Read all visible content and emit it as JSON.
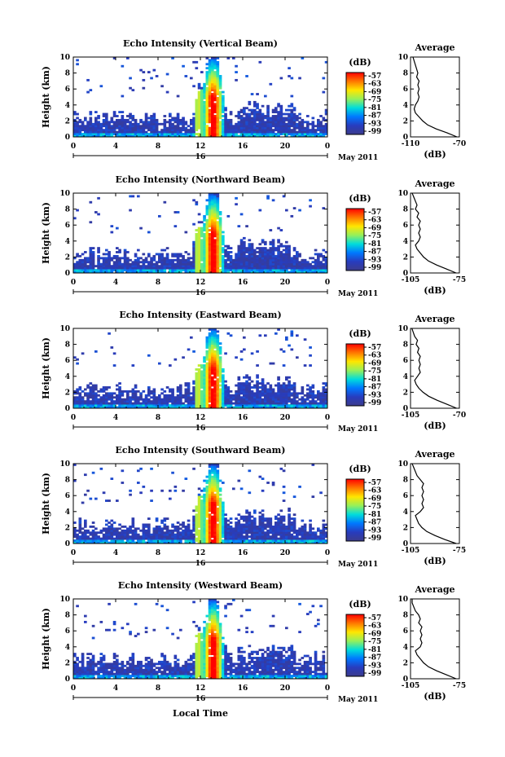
{
  "chart_data": {
    "type": "heatmap",
    "xlabel": "Local Time",
    "date_label": "May 2011",
    "day_marker": "16",
    "x_ticks": [
      "0",
      "4",
      "8",
      "12",
      "16",
      "20",
      "0"
    ],
    "y_ticks": [
      "0",
      "2",
      "4",
      "6",
      "8",
      "10"
    ],
    "ylabel": "Height (km)",
    "ylim": [
      0,
      10
    ],
    "xlim_hours": [
      0,
      24
    ],
    "colorbar": {
      "unit": "(dB)",
      "ticks": [
        "-57",
        "-63",
        "-69",
        "-75",
        "-81",
        "-87",
        "-93",
        "-99"
      ]
    },
    "average_title": "Average",
    "average_xlabel": "(dB)",
    "panels": [
      {
        "title": "Echo Intensity (Vertical Beam)",
        "average_xlim": [
          -110,
          -70
        ],
        "average_xticks": [
          "-110",
          "-70"
        ],
        "average_profile": [
          [
            -72,
            0
          ],
          [
            -80,
            0.5
          ],
          [
            -89,
            1
          ],
          [
            -96,
            1.5
          ],
          [
            -100,
            2
          ],
          [
            -103,
            2.5
          ],
          [
            -106,
            3
          ],
          [
            -107,
            3.5
          ],
          [
            -106,
            4
          ],
          [
            -104,
            4.5
          ],
          [
            -103,
            5
          ],
          [
            -104,
            5.5
          ],
          [
            -103,
            6
          ],
          [
            -104,
            6.5
          ],
          [
            -103,
            7
          ],
          [
            -105,
            7.5
          ],
          [
            -104,
            8
          ],
          [
            -105,
            8.5
          ],
          [
            -106,
            9
          ],
          [
            -107,
            9.5
          ],
          [
            -108,
            10
          ]
        ]
      },
      {
        "title": "Echo Intensity (Northward Beam)",
        "average_xlim": [
          -105,
          -75
        ],
        "average_xticks": [
          "-105",
          "-75"
        ],
        "average_profile": [
          [
            -77,
            0
          ],
          [
            -83,
            0.5
          ],
          [
            -89,
            1
          ],
          [
            -94,
            1.5
          ],
          [
            -97,
            2
          ],
          [
            -99,
            2.5
          ],
          [
            -101,
            3
          ],
          [
            -102,
            3.5
          ],
          [
            -100,
            4
          ],
          [
            -99,
            4.5
          ],
          [
            -100,
            5
          ],
          [
            -99,
            5.5
          ],
          [
            -100,
            6
          ],
          [
            -99,
            6.5
          ],
          [
            -101,
            7
          ],
          [
            -100,
            7.5
          ],
          [
            -102,
            8
          ],
          [
            -101,
            8.5
          ],
          [
            -102,
            9
          ],
          [
            -103,
            9.5
          ],
          [
            -104,
            10
          ]
        ]
      },
      {
        "title": "Echo Intensity (Eastward Beam)",
        "average_xlim": [
          -105,
          -70
        ],
        "average_xticks": [
          "-105",
          "-70"
        ],
        "average_profile": [
          [
            -72,
            0
          ],
          [
            -79,
            0.5
          ],
          [
            -86,
            1
          ],
          [
            -92,
            1.5
          ],
          [
            -96,
            2
          ],
          [
            -99,
            2.5
          ],
          [
            -101,
            3
          ],
          [
            -102,
            3.5
          ],
          [
            -100,
            4
          ],
          [
            -98,
            4.5
          ],
          [
            -99,
            5
          ],
          [
            -98,
            5.5
          ],
          [
            -99,
            6
          ],
          [
            -98,
            6.5
          ],
          [
            -100,
            7
          ],
          [
            -99,
            7.5
          ],
          [
            -101,
            8
          ],
          [
            -100,
            8.5
          ],
          [
            -102,
            9
          ],
          [
            -103,
            9.5
          ],
          [
            -104,
            10
          ]
        ]
      },
      {
        "title": "Echo Intensity (Southward Beam)",
        "average_xlim": [
          -105,
          -75
        ],
        "average_xticks": [
          "-105",
          "-75"
        ],
        "average_profile": [
          [
            -77,
            0
          ],
          [
            -84,
            0.5
          ],
          [
            -90,
            1
          ],
          [
            -95,
            1.5
          ],
          [
            -98,
            2
          ],
          [
            -100,
            2.5
          ],
          [
            -101,
            3
          ],
          [
            -102,
            3.5
          ],
          [
            -99,
            4
          ],
          [
            -97,
            4.5
          ],
          [
            -98,
            5
          ],
          [
            -97,
            5.5
          ],
          [
            -98,
            6
          ],
          [
            -97,
            6.5
          ],
          [
            -98,
            7
          ],
          [
            -97,
            7.5
          ],
          [
            -99,
            8
          ],
          [
            -101,
            8.5
          ],
          [
            -102,
            9
          ],
          [
            -103,
            9.5
          ],
          [
            -104,
            10
          ]
        ]
      },
      {
        "title": "Echo Intensity (Westward Beam)",
        "average_xlim": [
          -105,
          -75
        ],
        "average_xticks": [
          "-105",
          "-75"
        ],
        "average_profile": [
          [
            -77,
            0
          ],
          [
            -83,
            0.5
          ],
          [
            -89,
            1
          ],
          [
            -94,
            1.5
          ],
          [
            -97,
            2
          ],
          [
            -99,
            2.5
          ],
          [
            -101,
            3
          ],
          [
            -102,
            3.5
          ],
          [
            -99,
            4
          ],
          [
            -98,
            4.5
          ],
          [
            -99,
            5
          ],
          [
            -98,
            5.5
          ],
          [
            -99,
            6
          ],
          [
            -98,
            6.5
          ],
          [
            -100,
            7
          ],
          [
            -99,
            7.5
          ],
          [
            -100,
            8
          ],
          [
            -102,
            8.5
          ],
          [
            -103,
            9
          ],
          [
            -104,
            9.5
          ],
          [
            -104,
            10
          ]
        ]
      }
    ]
  }
}
